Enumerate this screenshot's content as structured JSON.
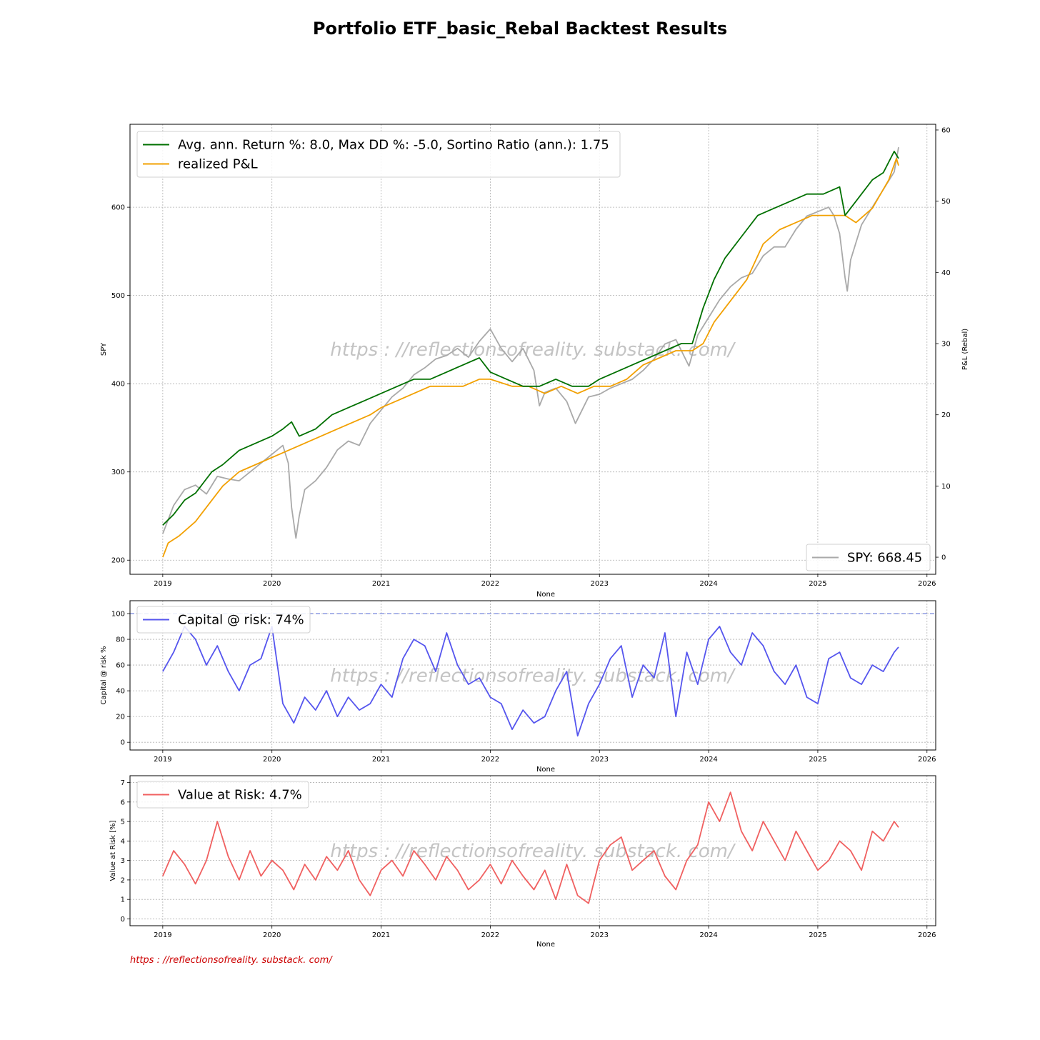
{
  "title": "Portfolio ETF_basic_Rebal Backtest Results",
  "watermark": "https : //reflectionsofreality. substack. com/",
  "footer": "https : //reflectionsofreality. substack. com/",
  "colors": {
    "strategy": "#007000",
    "realized": "#f2a000",
    "spy": "#a9a9a9",
    "capital": "#5555ee",
    "var": "#f06060",
    "footer": "#cc0000"
  },
  "chart_data": [
    {
      "type": "line",
      "xlabel": "None",
      "ylabel": "SPY",
      "ylabel_right": "P&L (Rebal)",
      "xlim": [
        2018.7,
        2026.08
      ],
      "ylim": [
        184,
        694
      ],
      "ylim_right": [
        -2.4,
        60.8
      ],
      "x_ticks": [
        "2019",
        "2020",
        "2021",
        "2022",
        "2023",
        "2024",
        "2025",
        "2026"
      ],
      "y_ticks": [
        "200",
        "300",
        "400",
        "500",
        "600"
      ],
      "y_ticks_right": [
        "0",
        "10",
        "20",
        "30",
        "40",
        "50",
        "60"
      ],
      "grid": true,
      "legend_top_left": [
        {
          "label": "Avg. ann. Return %: 8.0, Max DD %: -5.0, Sortino Ratio (ann.): 1.75",
          "color": "#007000"
        },
        {
          "label": "realized P&L",
          "color": "#f2a000"
        }
      ],
      "legend_bottom_right": [
        {
          "label": "SPY: 668.45",
          "color": "#a9a9a9"
        }
      ],
      "series": [
        {
          "name": "SPY",
          "axis": "left",
          "x": [
            2019.0,
            2019.1,
            2019.2,
            2019.3,
            2019.4,
            2019.5,
            2019.6,
            2019.7,
            2019.8,
            2019.9,
            2020.0,
            2020.1,
            2020.15,
            2020.18,
            2020.22,
            2020.25,
            2020.3,
            2020.4,
            2020.5,
            2020.6,
            2020.7,
            2020.8,
            2020.9,
            2021.0,
            2021.1,
            2021.2,
            2021.3,
            2021.4,
            2021.5,
            2021.6,
            2021.7,
            2021.8,
            2021.9,
            2022.0,
            2022.1,
            2022.2,
            2022.3,
            2022.4,
            2022.45,
            2022.5,
            2022.6,
            2022.7,
            2022.78,
            2022.9,
            2023.0,
            2023.1,
            2023.2,
            2023.3,
            2023.4,
            2023.5,
            2023.6,
            2023.7,
            2023.82,
            2023.9,
            2024.0,
            2024.1,
            2024.2,
            2024.3,
            2024.4,
            2024.5,
            2024.6,
            2024.7,
            2024.8,
            2024.9,
            2025.0,
            2025.1,
            2025.15,
            2025.2,
            2025.25,
            2025.27,
            2025.3,
            2025.35,
            2025.4,
            2025.5,
            2025.6,
            2025.7,
            2025.74
          ],
          "values": [
            230,
            262,
            280,
            285,
            275,
            295,
            292,
            290,
            300,
            310,
            320,
            330,
            310,
            260,
            225,
            250,
            280,
            290,
            305,
            325,
            335,
            330,
            355,
            370,
            385,
            395,
            410,
            418,
            428,
            432,
            440,
            430,
            448,
            462,
            440,
            425,
            440,
            415,
            375,
            390,
            395,
            380,
            355,
            385,
            388,
            395,
            400,
            405,
            415,
            428,
            445,
            450,
            420,
            455,
            475,
            495,
            510,
            520,
            525,
            545,
            555,
            555,
            575,
            590,
            595,
            600,
            590,
            570,
            520,
            505,
            540,
            560,
            580,
            600,
            620,
            640,
            668
          ]
        },
        {
          "name": "realized P&L",
          "axis": "right",
          "x": [
            2019.0,
            2019.05,
            2019.15,
            2019.3,
            2019.45,
            2019.55,
            2019.7,
            2019.85,
            2020.0,
            2020.15,
            2020.3,
            2020.45,
            2020.6,
            2020.75,
            2020.9,
            2021.0,
            2021.15,
            2021.3,
            2021.45,
            2021.6,
            2021.75,
            2021.9,
            2022.0,
            2022.2,
            2022.35,
            2022.5,
            2022.65,
            2022.8,
            2022.95,
            2023.1,
            2023.25,
            2023.4,
            2023.55,
            2023.7,
            2023.85,
            2023.95,
            2024.05,
            2024.2,
            2024.35,
            2024.5,
            2024.65,
            2024.8,
            2024.95,
            2025.1,
            2025.25,
            2025.35,
            2025.5,
            2025.65,
            2025.72,
            2025.74
          ],
          "values": [
            0,
            2,
            3,
            5,
            8,
            10,
            12,
            13,
            14,
            15,
            16,
            17,
            18,
            19,
            20,
            21,
            22,
            23,
            24,
            24,
            24,
            25,
            25,
            24,
            24,
            23,
            24,
            23,
            24,
            24,
            25,
            27,
            28,
            29,
            29,
            30,
            33,
            36,
            39,
            44,
            46,
            47,
            48,
            48,
            48,
            47,
            49,
            53,
            56,
            55
          ]
        },
        {
          "name": "Avg. ann. Return %: 8.0, Max DD %: -5.0, Sortino Ratio (ann.): 1.75",
          "axis": "right",
          "x": [
            2019.0,
            2019.1,
            2019.2,
            2019.3,
            2019.45,
            2019.55,
            2019.7,
            2019.85,
            2020.0,
            2020.1,
            2020.18,
            2020.25,
            2020.4,
            2020.55,
            2020.7,
            2020.85,
            2021.0,
            2021.15,
            2021.3,
            2021.45,
            2021.6,
            2021.75,
            2021.9,
            2022.0,
            2022.15,
            2022.3,
            2022.45,
            2022.6,
            2022.75,
            2022.9,
            2023.0,
            2023.15,
            2023.3,
            2023.45,
            2023.6,
            2023.75,
            2023.85,
            2023.95,
            2024.05,
            2024.15,
            2024.3,
            2024.45,
            2024.6,
            2024.75,
            2024.9,
            2025.05,
            2025.2,
            2025.25,
            2025.35,
            2025.5,
            2025.6,
            2025.7,
            2025.74
          ],
          "values": [
            4.5,
            6,
            8,
            9,
            12,
            13,
            15,
            16,
            17,
            18,
            19,
            17,
            18,
            20,
            21,
            22,
            23,
            24,
            25,
            25,
            26,
            27,
            28,
            26,
            25,
            24,
            24,
            25,
            24,
            24,
            25,
            26,
            27,
            28,
            29,
            30,
            30,
            35,
            39,
            42,
            45,
            48,
            49,
            50,
            51,
            51,
            52,
            48,
            50,
            53,
            54,
            57,
            56
          ]
        }
      ]
    },
    {
      "type": "line",
      "xlabel": "None",
      "ylabel": "Capital @ risk %",
      "xlim": [
        2018.7,
        2026.08
      ],
      "ylim": [
        -6,
        110
      ],
      "x_ticks": [
        "2019",
        "2020",
        "2021",
        "2022",
        "2023",
        "2024",
        "2025",
        "2026"
      ],
      "y_ticks": [
        "0",
        "20",
        "40",
        "60",
        "80",
        "100"
      ],
      "grid": true,
      "reference_line": 100,
      "legend": [
        {
          "label": "Capital @ risk: 74%",
          "color": "#5555ee"
        }
      ],
      "series": [
        {
          "name": "Capital @ risk",
          "x": [
            2019.0,
            2019.1,
            2019.2,
            2019.3,
            2019.4,
            2019.5,
            2019.6,
            2019.7,
            2019.8,
            2019.9,
            2020.0,
            2020.1,
            2020.2,
            2020.3,
            2020.4,
            2020.5,
            2020.6,
            2020.7,
            2020.8,
            2020.9,
            2021.0,
            2021.1,
            2021.2,
            2021.3,
            2021.4,
            2021.5,
            2021.6,
            2021.7,
            2021.8,
            2021.9,
            2022.0,
            2022.1,
            2022.2,
            2022.3,
            2022.4,
            2022.5,
            2022.6,
            2022.7,
            2022.8,
            2022.9,
            2023.0,
            2023.1,
            2023.2,
            2023.3,
            2023.4,
            2023.5,
            2023.6,
            2023.7,
            2023.8,
            2023.9,
            2024.0,
            2024.1,
            2024.2,
            2024.3,
            2024.4,
            2024.5,
            2024.6,
            2024.7,
            2024.8,
            2024.9,
            2025.0,
            2025.1,
            2025.2,
            2025.3,
            2025.4,
            2025.5,
            2025.6,
            2025.7,
            2025.74
          ],
          "values": [
            55,
            70,
            90,
            80,
            60,
            75,
            55,
            40,
            60,
            65,
            90,
            30,
            15,
            35,
            25,
            40,
            20,
            35,
            25,
            30,
            45,
            35,
            65,
            80,
            75,
            55,
            85,
            60,
            45,
            50,
            35,
            30,
            10,
            25,
            15,
            20,
            40,
            55,
            5,
            30,
            45,
            65,
            75,
            35,
            60,
            50,
            85,
            20,
            70,
            45,
            80,
            90,
            70,
            60,
            85,
            75,
            55,
            45,
            60,
            35,
            30,
            65,
            70,
            50,
            45,
            60,
            55,
            70,
            74
          ]
        }
      ]
    },
    {
      "type": "line",
      "xlabel": "None",
      "ylabel": "Value at Risk [%]",
      "xlim": [
        2018.7,
        2026.08
      ],
      "ylim": [
        -0.35,
        7.35
      ],
      "x_ticks": [
        "2019",
        "2020",
        "2021",
        "2022",
        "2023",
        "2024",
        "2025",
        "2026"
      ],
      "y_ticks": [
        "0",
        "1",
        "2",
        "3",
        "4",
        "5",
        "6",
        "7"
      ],
      "grid": true,
      "legend": [
        {
          "label": "Value at Risk: 4.7%",
          "color": "#f06060"
        }
      ],
      "series": [
        {
          "name": "Value at Risk",
          "x": [
            2019.0,
            2019.1,
            2019.2,
            2019.3,
            2019.4,
            2019.5,
            2019.6,
            2019.7,
            2019.8,
            2019.9,
            2020.0,
            2020.1,
            2020.2,
            2020.3,
            2020.4,
            2020.5,
            2020.6,
            2020.7,
            2020.8,
            2020.9,
            2021.0,
            2021.1,
            2021.2,
            2021.3,
            2021.4,
            2021.5,
            2021.6,
            2021.7,
            2021.8,
            2021.9,
            2022.0,
            2022.1,
            2022.2,
            2022.3,
            2022.4,
            2022.5,
            2022.6,
            2022.7,
            2022.8,
            2022.9,
            2023.0,
            2023.1,
            2023.2,
            2023.3,
            2023.4,
            2023.5,
            2023.6,
            2023.7,
            2023.8,
            2023.9,
            2024.0,
            2024.1,
            2024.2,
            2024.3,
            2024.4,
            2024.5,
            2024.6,
            2024.7,
            2024.8,
            2024.9,
            2025.0,
            2025.1,
            2025.2,
            2025.3,
            2025.4,
            2025.5,
            2025.6,
            2025.7,
            2025.74
          ],
          "values": [
            2.2,
            3.5,
            2.8,
            1.8,
            3.0,
            5.0,
            3.2,
            2.0,
            3.5,
            2.2,
            3.0,
            2.5,
            1.5,
            2.8,
            2.0,
            3.2,
            2.5,
            3.5,
            2.0,
            1.2,
            2.5,
            3.0,
            2.2,
            3.5,
            2.8,
            2.0,
            3.2,
            2.5,
            1.5,
            2.0,
            2.8,
            1.8,
            3.0,
            2.2,
            1.5,
            2.5,
            1.0,
            2.8,
            1.2,
            0.8,
            3.0,
            3.8,
            4.2,
            2.5,
            3.0,
            3.5,
            2.2,
            1.5,
            3.0,
            3.8,
            6.0,
            5.0,
            6.5,
            4.5,
            3.5,
            5.0,
            4.0,
            3.0,
            4.5,
            3.5,
            2.5,
            3.0,
            4.0,
            3.5,
            2.5,
            4.5,
            4.0,
            5.0,
            4.7
          ]
        }
      ]
    }
  ]
}
